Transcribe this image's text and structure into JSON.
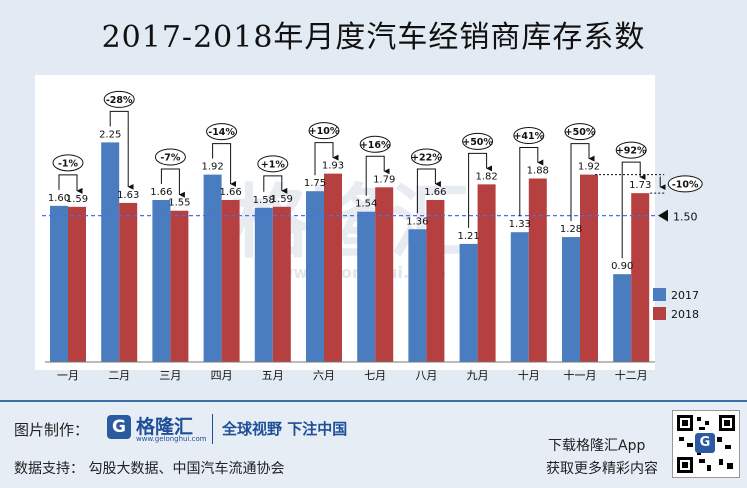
{
  "title": "2017-2018年月度汽车经销商库存系数",
  "watermark": {
    "brand": "格隆汇",
    "url": "www.gelonghui.com"
  },
  "chart_data": {
    "type": "bar",
    "categories": [
      "一月",
      "二月",
      "三月",
      "四月",
      "五月",
      "六月",
      "七月",
      "八月",
      "九月",
      "十月",
      "十一月",
      "十二月"
    ],
    "series": [
      {
        "name": "2017",
        "color": "#4a7dc0",
        "values": [
          1.6,
          2.25,
          1.66,
          1.92,
          1.58,
          1.75,
          1.54,
          1.36,
          1.21,
          1.33,
          1.28,
          0.9
        ]
      },
      {
        "name": "2018",
        "color": "#b5403f",
        "values": [
          1.59,
          1.63,
          1.55,
          1.66,
          1.59,
          1.93,
          1.79,
          1.66,
          1.82,
          1.88,
          1.92,
          1.73
        ]
      }
    ],
    "yoy_changes": [
      "-1%",
      "-28%",
      "-7%",
      "-14%",
      "+1%",
      "+10%",
      "+16%",
      "+22%",
      "+50%",
      "+41%",
      "+50%",
      "+92%"
    ],
    "reference_line": {
      "value": 1.5,
      "label": "1.50"
    },
    "december_vs_november": "-10%",
    "ylim": [
      0,
      2.5
    ],
    "legend_position": "bottom-right"
  },
  "footer": {
    "maker_label": "图片制作：",
    "logo_letter": "G",
    "logo_name": "格隆汇",
    "logo_url": "www.gelonghui.com",
    "slogan": "全球视野 下注中国",
    "source": "数据支持：  勾股大数据、中国汽车流通协会",
    "download": "下载格隆汇App",
    "more": "获取更多精彩内容",
    "qr_letter": "G"
  }
}
